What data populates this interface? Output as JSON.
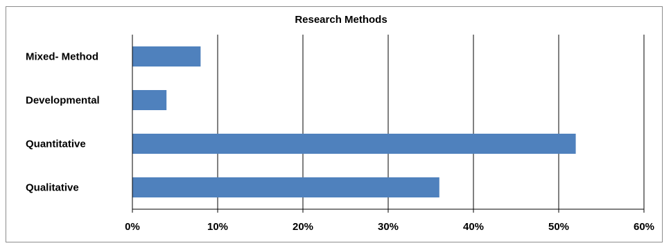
{
  "chart_data": {
    "type": "bar",
    "orientation": "horizontal",
    "title": "Research Methods",
    "categories": [
      "Mixed- Method",
      "Developmental",
      "Quantitative",
      "Qualitative"
    ],
    "values": [
      0.08,
      0.04,
      0.52,
      0.36
    ],
    "xlim": [
      0,
      0.6
    ],
    "xticks": [
      "0%",
      "10%",
      "20%",
      "30%",
      "40%",
      "50%",
      "60%"
    ],
    "xlabel": "",
    "ylabel": "",
    "grid": "vertical",
    "legend": "none",
    "bar_color": "#4f81bd",
    "grid_color": "#000000"
  }
}
